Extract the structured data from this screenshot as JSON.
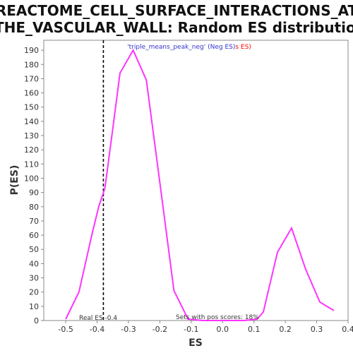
{
  "chart_data": {
    "type": "line",
    "title_line1": "REACTOME_CELL_SURFACE_INTERACTIONS_AT",
    "title_line2": "_THE_VASCULAR_WALL: Random ES distribution",
    "xlabel": "ES",
    "ylabel": "P(ES)",
    "xlim": [
      -0.57,
      0.4
    ],
    "ylim": [
      0,
      197
    ],
    "x_ticks": [
      -0.5,
      -0.4,
      -0.3,
      -0.2,
      -0.1,
      0.0,
      0.1,
      0.2,
      0.3,
      0.4
    ],
    "x_tick_labels": [
      "-0.5",
      "-0.4",
      "-0.3",
      "-0.2",
      "-0.1",
      "0.0",
      "0.1",
      "0.2",
      "0.3",
      "0.4"
    ],
    "y_ticks": [
      0,
      10,
      20,
      30,
      40,
      50,
      60,
      70,
      80,
      90,
      100,
      110,
      120,
      130,
      140,
      150,
      160,
      170,
      180,
      190
    ],
    "series": [
      {
        "name": "random ES",
        "color": "#ff33ff",
        "x": [
          -0.5,
          -0.458,
          -0.417,
          -0.395,
          -0.375,
          -0.35,
          -0.327,
          -0.285,
          -0.243,
          -0.2,
          -0.155,
          -0.11,
          -0.065,
          -0.022,
          0.025,
          0.07,
          0.11,
          0.13,
          0.175,
          0.22,
          0.265,
          0.31,
          0.355
        ],
        "y": [
          1,
          20,
          60,
          80,
          93,
          135,
          174,
          190,
          169,
          97,
          21,
          1,
          0,
          0,
          0,
          0,
          1,
          6,
          48,
          65,
          36,
          13,
          7
        ]
      }
    ],
    "real_es": {
      "value": -0.38,
      "label": "Real ES -0.4"
    },
    "sets_label": "Sets with pos scores: 18%",
    "legend": {
      "placement": "top-center",
      "part1": "'triple_means_peak_neg' (Neg ES)",
      "part2": "s ES)",
      "color1": "#3333cc",
      "color2": "#ff0000"
    },
    "grid": false
  }
}
